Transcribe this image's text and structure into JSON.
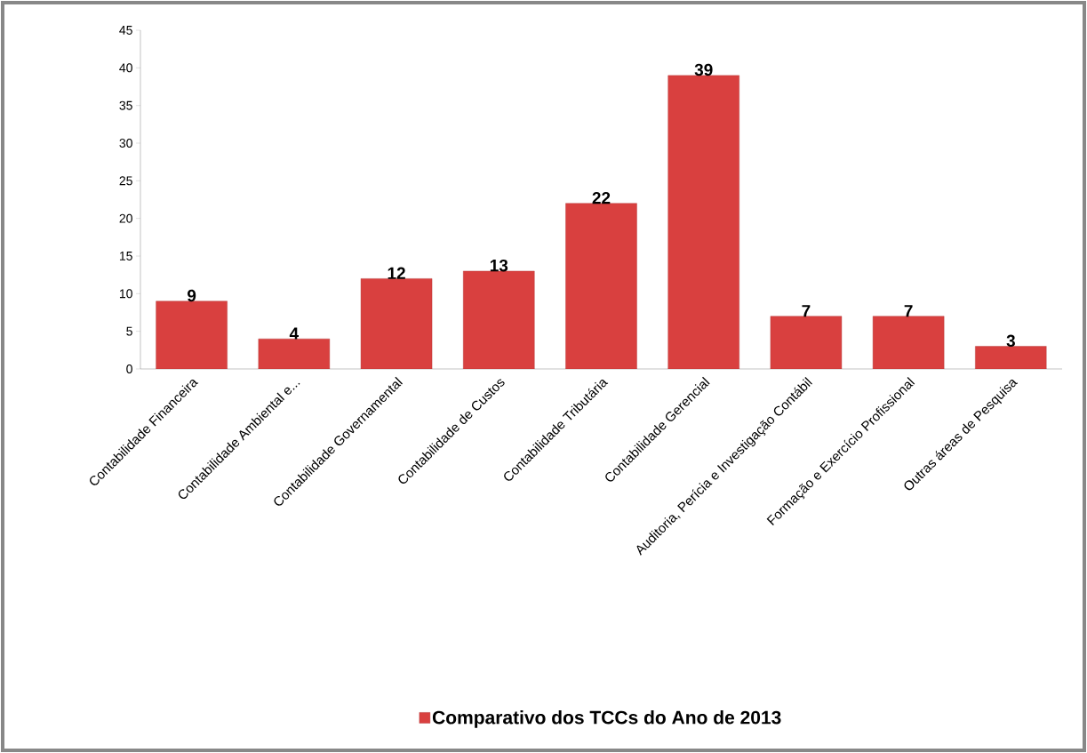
{
  "chart_data": {
    "type": "bar",
    "categories": [
      "Contabilidade Financeira",
      "Contabilidade Ambiental e...",
      "Contabilidade Governamental",
      "Contabilidade de Custos",
      "Contabilidade Tributária",
      "Contabilidade Gerencial",
      "Auditoria, Perícia e Investigação Contábil",
      "Formação e Exercício Profissional",
      "Outras áreas de Pesquisa"
    ],
    "series": [
      {
        "name": "Comparativo dos TCCs do Ano de 2013",
        "color": "#d9403f",
        "values": [
          9,
          4,
          12,
          13,
          22,
          39,
          7,
          7,
          3
        ]
      }
    ],
    "ylim": [
      0,
      45
    ],
    "yticks": [
      0,
      5,
      10,
      15,
      20,
      25,
      30,
      35,
      40,
      45
    ],
    "data_labels": true,
    "legend": "bottom"
  }
}
